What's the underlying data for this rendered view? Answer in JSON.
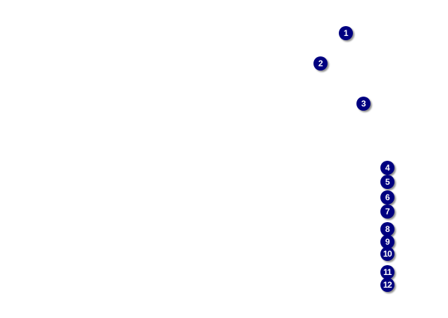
{
  "colors": {
    "callout_fill": "#000080",
    "callout_text": "#ffffff",
    "background": "#ffffff"
  },
  "callouts": [
    "1",
    "2",
    "3",
    "4",
    "5",
    "6",
    "7",
    "8",
    "9",
    "10",
    "11",
    "12"
  ]
}
